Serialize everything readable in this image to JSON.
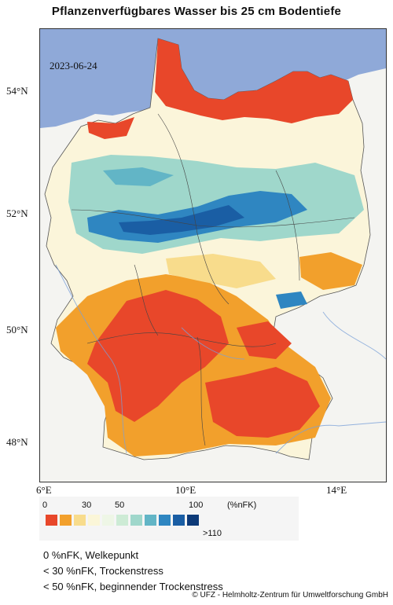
{
  "title": "Pflanzenverfügbares Wasser bis 25 cm Bodentiefe",
  "date": "2023-06-24",
  "lat_labels": [
    "54°N",
    "52°N",
    "50°N",
    "48°N"
  ],
  "lon_labels": [
    "6°E",
    "10°E",
    "14°E"
  ],
  "legend": {
    "tick_labels": [
      "0",
      "30",
      "50",
      "100",
      "(%nFK)",
      ">110"
    ],
    "colors": [
      "#e8472a",
      "#f2a02c",
      "#f8dc8c",
      "#fbf6d8",
      "#eef6e6",
      "#cdebd5",
      "#9fd7cb",
      "#62b5c6",
      "#2f86c1",
      "#1a5ea4",
      "#0d3a78"
    ]
  },
  "notes": [
    "0 %nFK, Welkepunkt",
    "< 30 %nFK, Trockenstress",
    "< 50 %nFK, beginnender Trockenstress"
  ],
  "credit": "© UFZ - Helmholtz-Zentrum für Umweltforschung GmbH",
  "colors": {
    "sea": "#8fa9d8",
    "land_outside": "#f4f4f1",
    "very_dry": "#e8472a",
    "dry": "#f2a02c",
    "wet": "#2f86c1"
  }
}
